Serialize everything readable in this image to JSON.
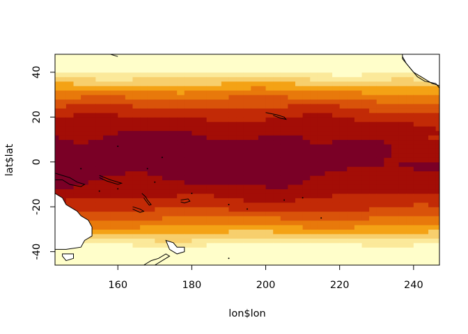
{
  "chart_data": {
    "type": "heatmap",
    "title": "",
    "xlabel": "lon$lon",
    "ylabel": "lat$lat",
    "xlim": [
      143,
      247
    ],
    "ylim": [
      -46,
      48
    ],
    "x_ticks": [
      160,
      180,
      200,
      220,
      240
    ],
    "y_ticks": [
      -40,
      -20,
      0,
      20,
      40
    ],
    "x_tick_labels": [
      "160",
      "180",
      "200",
      "220",
      "240"
    ],
    "y_tick_labels": [
      "-40",
      "-20",
      "0",
      "20",
      "40"
    ],
    "grid": false,
    "legend": "none",
    "colormap": "heat.colors",
    "cell_size_degrees": 2,
    "colors": {
      "c0": "#fffeca",
      "c1": "#fbe99a",
      "c2": "#f7cf6d",
      "c3": "#f4a215",
      "c4": "#e8790b",
      "c5": "#d9530a",
      "c6": "#c22a06",
      "c7": "#a30d06",
      "c8": "#7a0026"
    },
    "land_color": "#ffffff",
    "coast_color": "#000000",
    "frame_color": "#000000"
  }
}
